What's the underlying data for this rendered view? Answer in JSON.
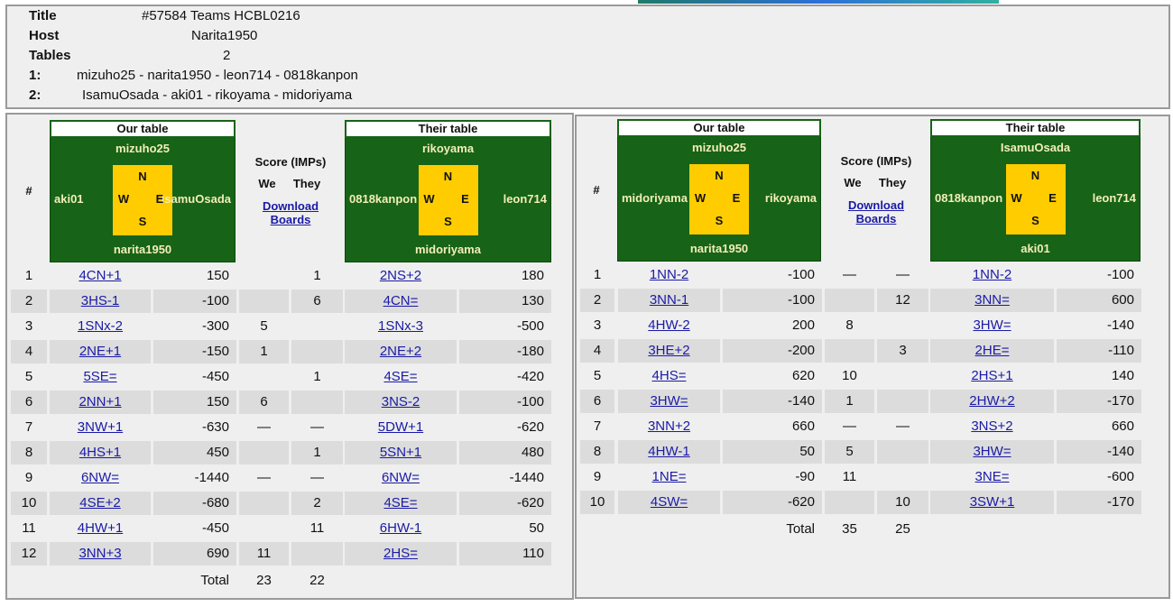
{
  "header": {
    "title_label": "Title",
    "title": "#57584 Teams HCBL0216",
    "host_label": "Host",
    "host": "Narita1950",
    "tables_label": "Tables",
    "tables": 2,
    "lines": [
      {
        "label": "1:",
        "players": "mizuho25 - narita1950 - leon714 - 0818kanpon"
      },
      {
        "label": "2:",
        "players": "IsamuOsada - aki01 - rikoyama - midoriyama"
      }
    ]
  },
  "panels": [
    {
      "number_header": "#",
      "compass": [
        "N",
        "W",
        "E",
        "S"
      ],
      "our_table": {
        "label": "Our table",
        "north": "mizuho25",
        "west": "aki01",
        "east": "IsamuOsada",
        "south": "narita1950"
      },
      "their_table": {
        "label": "Their table",
        "north": "rikoyama",
        "west": "0818kanpon",
        "east": "leon714",
        "south": "midoriyama"
      },
      "score_header": "Score (IMPs)",
      "we_header": "We",
      "they_header": "They",
      "download_link": "Download Boards",
      "rows": [
        [
          1,
          "4CN+1",
          150,
          null,
          1,
          "2NS+2",
          180
        ],
        [
          2,
          "3HS-1",
          -100,
          null,
          6,
          "4CN=",
          130
        ],
        [
          3,
          "1SNx-2",
          -300,
          5,
          null,
          "1SNx-3",
          -500
        ],
        [
          4,
          "2NE+1",
          -150,
          1,
          null,
          "2NE+2",
          -180
        ],
        [
          5,
          "5SE=",
          -450,
          null,
          1,
          "4SE=",
          -420
        ],
        [
          6,
          "2NN+1",
          150,
          6,
          null,
          "3NS-2",
          -100
        ],
        [
          7,
          "3NW+1",
          -630,
          "—",
          "—",
          "5DW+1",
          -620
        ],
        [
          8,
          "4HS+1",
          450,
          null,
          1,
          "5SN+1",
          480
        ],
        [
          9,
          "6NW=",
          -1440,
          "—",
          "—",
          "6NW=",
          -1440
        ],
        [
          10,
          "4SE+2",
          -680,
          null,
          2,
          "4SE=",
          -620
        ],
        [
          11,
          "4HW+1",
          -450,
          null,
          11,
          "6HW-1",
          50
        ],
        [
          12,
          "3NN+3",
          690,
          11,
          null,
          "2HS=",
          110
        ]
      ],
      "total_label": "Total",
      "total_we": 23,
      "total_they": 22
    },
    {
      "number_header": "#",
      "compass": [
        "N",
        "W",
        "E",
        "S"
      ],
      "our_table": {
        "label": "Our table",
        "north": "mizuho25",
        "west": "midoriyama",
        "east": "rikoyama",
        "south": "narita1950"
      },
      "their_table": {
        "label": "Their table",
        "north": "IsamuOsada",
        "west": "0818kanpon",
        "east": "leon714",
        "south": "aki01"
      },
      "score_header": "Score (IMPs)",
      "we_header": "We",
      "they_header": "They",
      "download_link": "Download Boards",
      "rows": [
        [
          1,
          "1NN-2",
          -100,
          "—",
          "—",
          "1NN-2",
          -100
        ],
        [
          2,
          "3NN-1",
          -100,
          null,
          12,
          "3NN=",
          600
        ],
        [
          3,
          "4HW-2",
          200,
          8,
          null,
          "3HW=",
          -140
        ],
        [
          4,
          "3HE+2",
          -200,
          null,
          3,
          "2HE=",
          -110
        ],
        [
          5,
          "4HS=",
          620,
          10,
          null,
          "2HS+1",
          140
        ],
        [
          6,
          "3HW=",
          -140,
          1,
          null,
          "2HW+2",
          -170
        ],
        [
          7,
          "3NN+2",
          660,
          "—",
          "—",
          "3NS+2",
          660
        ],
        [
          8,
          "4HW-1",
          50,
          5,
          null,
          "3HW=",
          -140
        ],
        [
          9,
          "1NE=",
          -90,
          11,
          null,
          "3NE=",
          -600
        ],
        [
          10,
          "4SW=",
          -620,
          null,
          10,
          "3SW+1",
          -170
        ]
      ],
      "total_label": "Total",
      "total_we": 35,
      "total_they": 25
    }
  ]
}
